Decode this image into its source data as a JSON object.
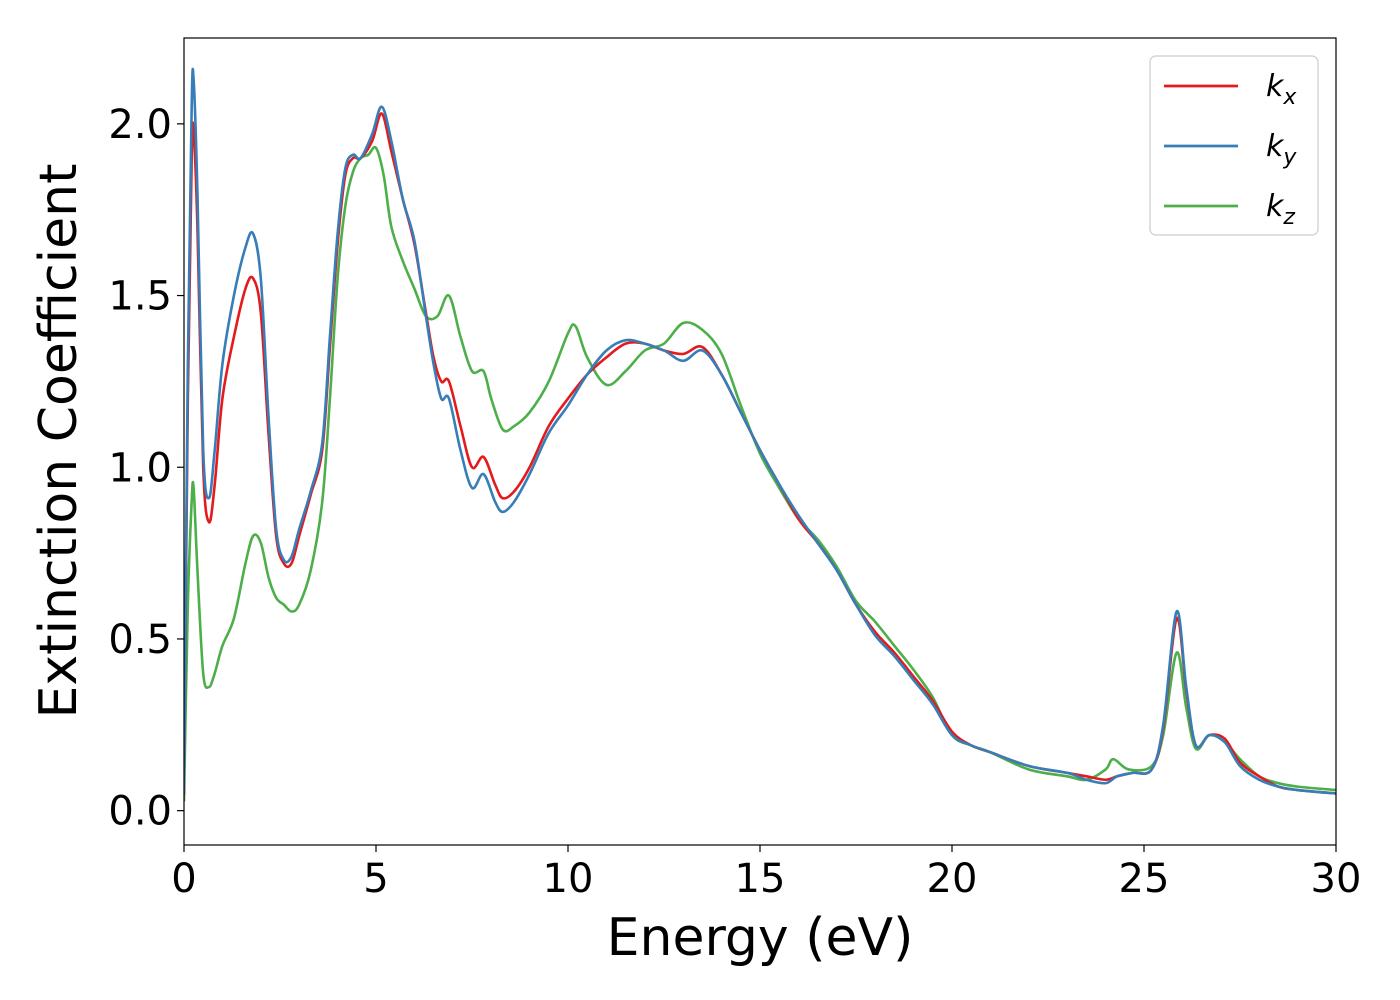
{
  "chart_data": {
    "type": "line",
    "xlabel": "Energy (eV)",
    "ylabel": "Extinction Coefficient",
    "xlim": [
      0,
      30
    ],
    "ylim": [
      -0.1,
      2.25
    ],
    "xticks": [
      0,
      5,
      10,
      15,
      20,
      25,
      30
    ],
    "xtick_labels": [
      "0",
      "5",
      "10",
      "15",
      "20",
      "25",
      "30"
    ],
    "yticks": [
      0.0,
      0.5,
      1.0,
      1.5,
      2.0
    ],
    "ytick_labels": [
      "0.0",
      "0.5",
      "1.0",
      "1.5",
      "2.0"
    ],
    "grid": false,
    "legend_position": "top-right",
    "series": [
      {
        "name": "k_x",
        "legend_main": "k",
        "legend_sub": "x",
        "color": "#e41a1c",
        "points": [
          [
            0,
            0.05
          ],
          [
            0.1,
            1.2
          ],
          [
            0.2,
            1.9
          ],
          [
            0.25,
            1.98
          ],
          [
            0.35,
            1.7
          ],
          [
            0.5,
            1.0
          ],
          [
            0.65,
            0.84
          ],
          [
            0.8,
            0.95
          ],
          [
            1.0,
            1.2
          ],
          [
            1.3,
            1.38
          ],
          [
            1.6,
            1.52
          ],
          [
            1.8,
            1.55
          ],
          [
            2.0,
            1.45
          ],
          [
            2.2,
            1.1
          ],
          [
            2.4,
            0.8
          ],
          [
            2.6,
            0.72
          ],
          [
            2.8,
            0.72
          ],
          [
            3.0,
            0.8
          ],
          [
            3.3,
            0.92
          ],
          [
            3.6,
            1.05
          ],
          [
            3.8,
            1.35
          ],
          [
            4.0,
            1.65
          ],
          [
            4.2,
            1.85
          ],
          [
            4.4,
            1.9
          ],
          [
            4.6,
            1.9
          ],
          [
            4.9,
            1.95
          ],
          [
            5.15,
            2.03
          ],
          [
            5.4,
            1.92
          ],
          [
            5.7,
            1.78
          ],
          [
            6.0,
            1.65
          ],
          [
            6.3,
            1.45
          ],
          [
            6.5,
            1.32
          ],
          [
            6.7,
            1.25
          ],
          [
            6.9,
            1.25
          ],
          [
            7.2,
            1.12
          ],
          [
            7.5,
            1.0
          ],
          [
            7.8,
            1.03
          ],
          [
            8.1,
            0.95
          ],
          [
            8.3,
            0.91
          ],
          [
            8.6,
            0.93
          ],
          [
            9.0,
            1.0
          ],
          [
            9.5,
            1.12
          ],
          [
            10.0,
            1.2
          ],
          [
            10.5,
            1.27
          ],
          [
            11.0,
            1.32
          ],
          [
            11.5,
            1.36
          ],
          [
            12.0,
            1.36
          ],
          [
            12.5,
            1.34
          ],
          [
            13.0,
            1.33
          ],
          [
            13.5,
            1.35
          ],
          [
            14.0,
            1.27
          ],
          [
            14.5,
            1.16
          ],
          [
            15.0,
            1.05
          ],
          [
            15.5,
            0.95
          ],
          [
            16.0,
            0.85
          ],
          [
            16.5,
            0.78
          ],
          [
            17.0,
            0.7
          ],
          [
            17.5,
            0.6
          ],
          [
            18.0,
            0.52
          ],
          [
            18.5,
            0.46
          ],
          [
            19.0,
            0.39
          ],
          [
            19.5,
            0.32
          ],
          [
            20.0,
            0.23
          ],
          [
            20.5,
            0.19
          ],
          [
            21.0,
            0.17
          ],
          [
            22.0,
            0.13
          ],
          [
            23.0,
            0.11
          ],
          [
            23.5,
            0.1
          ],
          [
            24.0,
            0.09
          ],
          [
            24.3,
            0.1
          ],
          [
            24.7,
            0.11
          ],
          [
            25.2,
            0.12
          ],
          [
            25.5,
            0.24
          ],
          [
            25.85,
            0.56
          ],
          [
            26.1,
            0.35
          ],
          [
            26.35,
            0.19
          ],
          [
            26.7,
            0.22
          ],
          [
            27.1,
            0.21
          ],
          [
            27.5,
            0.14
          ],
          [
            28.0,
            0.1
          ],
          [
            28.5,
            0.07
          ],
          [
            29.0,
            0.06
          ],
          [
            30.0,
            0.05
          ]
        ]
      },
      {
        "name": "k_y",
        "legend_main": "k",
        "legend_sub": "y",
        "color": "#377eb8",
        "points": [
          [
            0,
            0.05
          ],
          [
            0.1,
            1.3
          ],
          [
            0.2,
            2.05
          ],
          [
            0.25,
            2.13
          ],
          [
            0.35,
            1.8
          ],
          [
            0.5,
            1.05
          ],
          [
            0.65,
            0.91
          ],
          [
            0.8,
            1.05
          ],
          [
            1.0,
            1.3
          ],
          [
            1.3,
            1.5
          ],
          [
            1.6,
            1.64
          ],
          [
            1.8,
            1.68
          ],
          [
            2.0,
            1.55
          ],
          [
            2.2,
            1.15
          ],
          [
            2.4,
            0.82
          ],
          [
            2.6,
            0.73
          ],
          [
            2.8,
            0.74
          ],
          [
            3.0,
            0.82
          ],
          [
            3.3,
            0.93
          ],
          [
            3.6,
            1.07
          ],
          [
            3.8,
            1.38
          ],
          [
            4.0,
            1.68
          ],
          [
            4.2,
            1.87
          ],
          [
            4.4,
            1.91
          ],
          [
            4.6,
            1.9
          ],
          [
            4.9,
            1.97
          ],
          [
            5.15,
            2.05
          ],
          [
            5.4,
            1.95
          ],
          [
            5.7,
            1.78
          ],
          [
            6.0,
            1.66
          ],
          [
            6.3,
            1.44
          ],
          [
            6.5,
            1.3
          ],
          [
            6.7,
            1.2
          ],
          [
            6.9,
            1.2
          ],
          [
            7.2,
            1.05
          ],
          [
            7.5,
            0.94
          ],
          [
            7.8,
            0.98
          ],
          [
            8.1,
            0.9
          ],
          [
            8.3,
            0.87
          ],
          [
            8.6,
            0.9
          ],
          [
            9.0,
            0.98
          ],
          [
            9.5,
            1.1
          ],
          [
            10.0,
            1.18
          ],
          [
            10.5,
            1.27
          ],
          [
            11.0,
            1.34
          ],
          [
            11.5,
            1.37
          ],
          [
            12.0,
            1.36
          ],
          [
            12.5,
            1.34
          ],
          [
            13.0,
            1.31
          ],
          [
            13.5,
            1.34
          ],
          [
            14.0,
            1.27
          ],
          [
            14.5,
            1.16
          ],
          [
            15.0,
            1.05
          ],
          [
            15.5,
            0.95
          ],
          [
            16.0,
            0.86
          ],
          [
            16.5,
            0.78
          ],
          [
            17.0,
            0.7
          ],
          [
            17.5,
            0.6
          ],
          [
            18.0,
            0.51
          ],
          [
            18.5,
            0.45
          ],
          [
            19.0,
            0.38
          ],
          [
            19.5,
            0.31
          ],
          [
            20.0,
            0.22
          ],
          [
            20.5,
            0.19
          ],
          [
            21.0,
            0.17
          ],
          [
            22.0,
            0.13
          ],
          [
            23.0,
            0.11
          ],
          [
            23.5,
            0.09
          ],
          [
            24.0,
            0.08
          ],
          [
            24.3,
            0.1
          ],
          [
            24.7,
            0.11
          ],
          [
            25.2,
            0.12
          ],
          [
            25.5,
            0.25
          ],
          [
            25.85,
            0.58
          ],
          [
            26.1,
            0.36
          ],
          [
            26.35,
            0.19
          ],
          [
            26.7,
            0.22
          ],
          [
            27.1,
            0.2
          ],
          [
            27.5,
            0.13
          ],
          [
            28.0,
            0.09
          ],
          [
            28.5,
            0.07
          ],
          [
            29.0,
            0.06
          ],
          [
            30.0,
            0.05
          ]
        ]
      },
      {
        "name": "k_z",
        "legend_main": "k",
        "legend_sub": "z",
        "color": "#4daf4a",
        "points": [
          [
            0,
            0.03
          ],
          [
            0.1,
            0.6
          ],
          [
            0.2,
            0.9
          ],
          [
            0.25,
            0.94
          ],
          [
            0.35,
            0.7
          ],
          [
            0.5,
            0.4
          ],
          [
            0.65,
            0.36
          ],
          [
            0.8,
            0.4
          ],
          [
            1.0,
            0.48
          ],
          [
            1.3,
            0.56
          ],
          [
            1.6,
            0.72
          ],
          [
            1.8,
            0.8
          ],
          [
            2.0,
            0.78
          ],
          [
            2.2,
            0.68
          ],
          [
            2.4,
            0.62
          ],
          [
            2.6,
            0.6
          ],
          [
            2.8,
            0.58
          ],
          [
            3.0,
            0.6
          ],
          [
            3.3,
            0.7
          ],
          [
            3.6,
            0.9
          ],
          [
            3.8,
            1.2
          ],
          [
            4.0,
            1.55
          ],
          [
            4.2,
            1.76
          ],
          [
            4.4,
            1.86
          ],
          [
            4.6,
            1.9
          ],
          [
            4.8,
            1.91
          ],
          [
            5.0,
            1.93
          ],
          [
            5.2,
            1.85
          ],
          [
            5.4,
            1.7
          ],
          [
            5.7,
            1.6
          ],
          [
            6.0,
            1.52
          ],
          [
            6.3,
            1.44
          ],
          [
            6.6,
            1.44
          ],
          [
            6.9,
            1.5
          ],
          [
            7.2,
            1.38
          ],
          [
            7.5,
            1.28
          ],
          [
            7.8,
            1.28
          ],
          [
            8.0,
            1.2
          ],
          [
            8.3,
            1.11
          ],
          [
            8.6,
            1.12
          ],
          [
            9.0,
            1.16
          ],
          [
            9.5,
            1.25
          ],
          [
            10.0,
            1.39
          ],
          [
            10.2,
            1.41
          ],
          [
            10.5,
            1.32
          ],
          [
            11.0,
            1.24
          ],
          [
            11.5,
            1.28
          ],
          [
            12.0,
            1.34
          ],
          [
            12.5,
            1.36
          ],
          [
            13.0,
            1.42
          ],
          [
            13.5,
            1.4
          ],
          [
            14.0,
            1.33
          ],
          [
            14.5,
            1.18
          ],
          [
            15.0,
            1.04
          ],
          [
            15.5,
            0.94
          ],
          [
            16.0,
            0.85
          ],
          [
            16.5,
            0.79
          ],
          [
            17.0,
            0.71
          ],
          [
            17.5,
            0.61
          ],
          [
            18.0,
            0.55
          ],
          [
            18.5,
            0.48
          ],
          [
            19.0,
            0.41
          ],
          [
            19.5,
            0.33
          ],
          [
            20.0,
            0.22
          ],
          [
            20.5,
            0.19
          ],
          [
            21.0,
            0.17
          ],
          [
            22.0,
            0.12
          ],
          [
            23.0,
            0.1
          ],
          [
            23.5,
            0.09
          ],
          [
            24.0,
            0.12
          ],
          [
            24.2,
            0.15
          ],
          [
            24.6,
            0.12
          ],
          [
            25.2,
            0.13
          ],
          [
            25.5,
            0.22
          ],
          [
            25.85,
            0.46
          ],
          [
            26.1,
            0.3
          ],
          [
            26.35,
            0.18
          ],
          [
            26.7,
            0.22
          ],
          [
            27.1,
            0.2
          ],
          [
            27.5,
            0.15
          ],
          [
            28.0,
            0.1
          ],
          [
            28.5,
            0.08
          ],
          [
            29.0,
            0.07
          ],
          [
            30.0,
            0.06
          ]
        ]
      }
    ]
  }
}
